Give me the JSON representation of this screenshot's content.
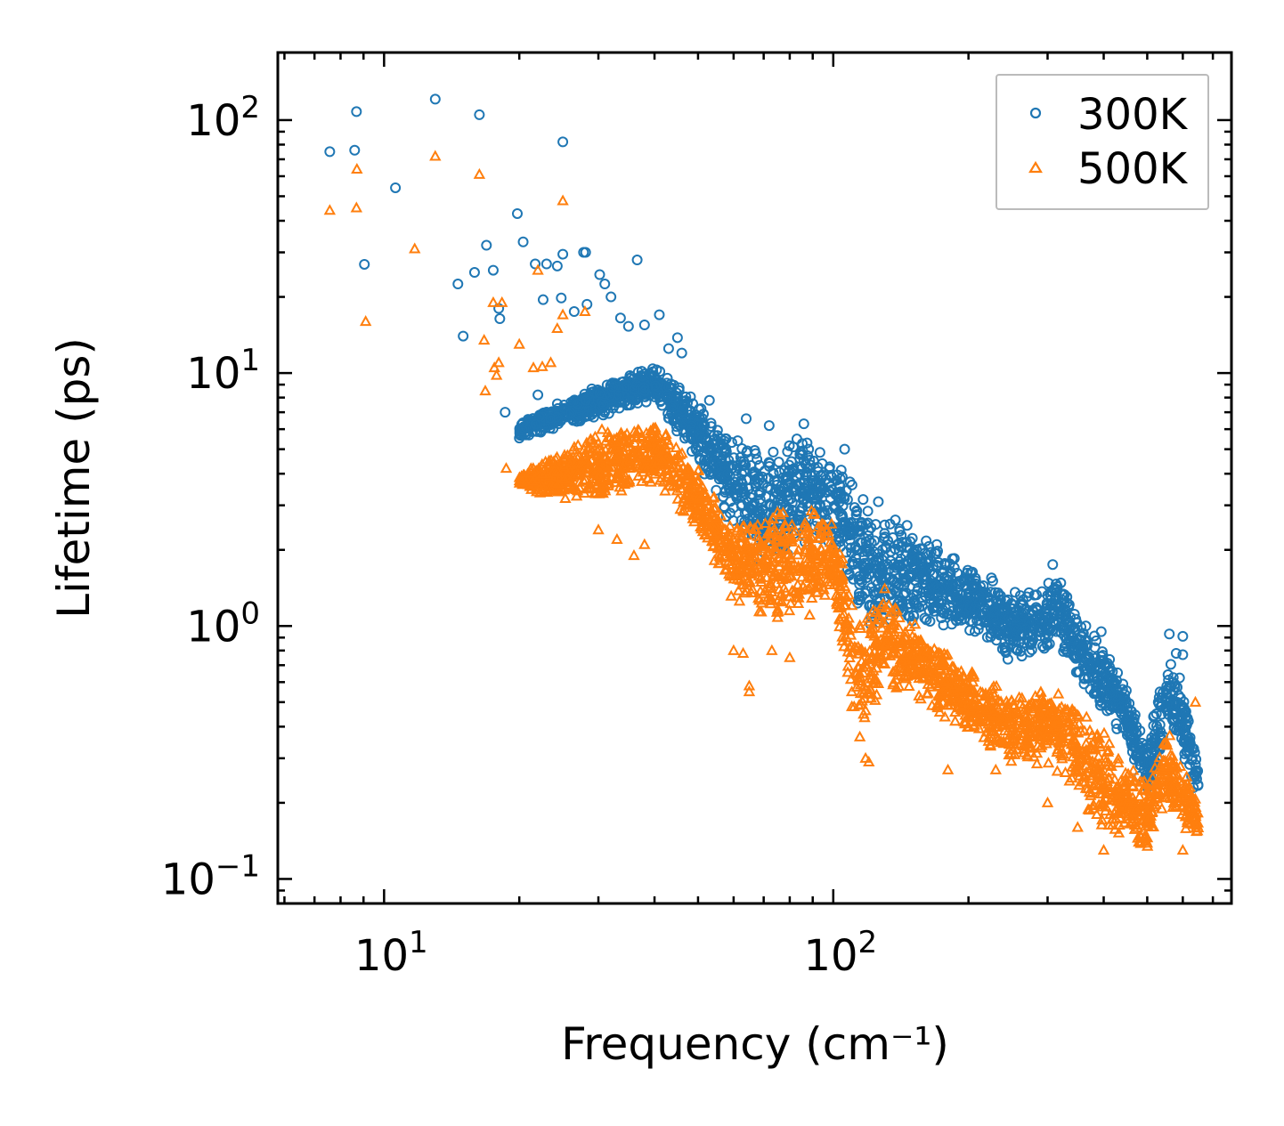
{
  "chart_data": {
    "type": "scatter",
    "title": "",
    "xlabel": "Frequency (cm⁻¹)",
    "ylabel": "Lifetime (ps)",
    "xscale": "log",
    "yscale": "log",
    "xlim": [
      5.8,
      770
    ],
    "ylim": [
      0.08,
      185
    ],
    "grid": false,
    "legend_position": "top-right",
    "xticks": [
      {
        "value": 10,
        "base": "10",
        "exp": "1"
      },
      {
        "value": 100,
        "base": "10",
        "exp": "2"
      }
    ],
    "yticks": [
      {
        "value": 0.1,
        "base": "10",
        "exp": "−1"
      },
      {
        "value": 1,
        "base": "10",
        "exp": "0"
      },
      {
        "value": 10,
        "base": "10",
        "exp": "1"
      },
      {
        "value": 100,
        "base": "10",
        "exp": "2"
      }
    ],
    "series": [
      {
        "name": "300K",
        "marker": "circle",
        "color": "#1f77b4",
        "points": [
          [
            7.57,
            75
          ],
          [
            8.68,
            108
          ],
          [
            8.6,
            76
          ],
          [
            9.04,
            26.9
          ],
          [
            10.6,
            54
          ],
          [
            13.0,
            121
          ],
          [
            16.3,
            105
          ],
          [
            25.0,
            82
          ],
          [
            19.8,
            42.7
          ],
          [
            20.4,
            33
          ],
          [
            16.9,
            32
          ],
          [
            14.6,
            22.5
          ],
          [
            15.9,
            25
          ],
          [
            28.1,
            30
          ],
          [
            36.6,
            28
          ],
          [
            21.7,
            27
          ],
          [
            23,
            27
          ],
          [
            24.3,
            26.5
          ],
          [
            25,
            29.5
          ],
          [
            27.8,
            30
          ],
          [
            17.5,
            25.5
          ],
          [
            18,
            18
          ],
          [
            18.1,
            16.4
          ],
          [
            22.6,
            19.5
          ],
          [
            24.8,
            19.8
          ],
          [
            26.5,
            17.5
          ],
          [
            28.3,
            18.7
          ],
          [
            30.2,
            24.5
          ],
          [
            31,
            22.5
          ],
          [
            32,
            20
          ],
          [
            33.6,
            16.5
          ],
          [
            35,
            15.3
          ],
          [
            38,
            15.5
          ],
          [
            41,
            17
          ],
          [
            15,
            14
          ],
          [
            18.6,
            7
          ],
          [
            22,
            8.2
          ],
          [
            45,
            13.8
          ],
          [
            46,
            12
          ],
          [
            43,
            12.5
          ],
          [
            53,
            7.8
          ],
          [
            64,
            6.6
          ],
          [
            72,
            6.2
          ],
          [
            86,
            6.3
          ],
          [
            106,
            5
          ],
          [
            126,
            3.1
          ],
          [
            146,
            2.5
          ],
          [
            170,
            2.1
          ],
          [
            186,
            1.85
          ],
          [
            225,
            1.55
          ],
          [
            308,
            1.75
          ],
          [
            365,
            1.0
          ],
          [
            395,
            0.95
          ],
          [
            560,
            0.93
          ],
          [
            600,
            0.91
          ],
          [
            580,
            0.78
          ],
          [
            600,
            0.77
          ]
        ],
        "band": [
          [
            20,
            5.5,
            6.5
          ],
          [
            30,
            6.6,
            9
          ],
          [
            40,
            7.8,
            11
          ],
          [
            50,
            4.4,
            7.8
          ],
          [
            60,
            2.3,
            5.6
          ],
          [
            70,
            1.5,
            5
          ],
          [
            85,
            2,
            6
          ],
          [
            100,
            2,
            4.8
          ],
          [
            120,
            0.9,
            3.2
          ],
          [
            150,
            1,
            2.5
          ],
          [
            200,
            0.9,
            1.8
          ],
          [
            250,
            0.7,
            1.4
          ],
          [
            300,
            0.75,
            1.5
          ],
          [
            310,
            0.9,
            1.7
          ],
          [
            350,
            0.6,
            1.1
          ],
          [
            400,
            0.45,
            0.85
          ],
          [
            450,
            0.35,
            0.6
          ],
          [
            500,
            0.2,
            0.35
          ],
          [
            550,
            0.35,
            0.8
          ],
          [
            600,
            0.3,
            0.6
          ],
          [
            650,
            0.2,
            0.3
          ]
        ]
      },
      {
        "name": "500K",
        "marker": "triangle",
        "color": "#ff7f0e",
        "points": [
          [
            7.57,
            44
          ],
          [
            8.68,
            45
          ],
          [
            8.7,
            64
          ],
          [
            9.1,
            16
          ],
          [
            11.7,
            31
          ],
          [
            13.0,
            72
          ],
          [
            16.3,
            61
          ],
          [
            25.0,
            48
          ],
          [
            17.5,
            19
          ],
          [
            18.3,
            19
          ],
          [
            16.7,
            13.5
          ],
          [
            16.8,
            8.5
          ],
          [
            17.6,
            10.5
          ],
          [
            18,
            11
          ],
          [
            17.8,
            9.8
          ],
          [
            20,
            13
          ],
          [
            21.5,
            10.5
          ],
          [
            22.5,
            10.6
          ],
          [
            23.5,
            11
          ],
          [
            24.3,
            15
          ],
          [
            22,
            25.5
          ],
          [
            25,
            17
          ],
          [
            28,
            17.5
          ],
          [
            18.7,
            4.2
          ],
          [
            30,
            2.4
          ],
          [
            33,
            2.2
          ],
          [
            36,
            1.9
          ],
          [
            38,
            2.1
          ],
          [
            60,
            0.8
          ],
          [
            63,
            0.78
          ],
          [
            65,
            0.58
          ],
          [
            65,
            0.55
          ],
          [
            73,
            0.8
          ],
          [
            80,
            0.75
          ],
          [
            110,
            0.48
          ],
          [
            118,
            0.3
          ],
          [
            120,
            0.29
          ],
          [
            180,
            0.27
          ],
          [
            230,
            0.27
          ],
          [
            300,
            0.2
          ],
          [
            350,
            0.16
          ],
          [
            400,
            0.13
          ],
          [
            600,
            0.13
          ],
          [
            640,
            0.5
          ]
        ],
        "band": [
          [
            20,
            3.4,
            4
          ],
          [
            30,
            3,
            6
          ],
          [
            40,
            3.7,
            6.5
          ],
          [
            50,
            2.3,
            4.4
          ],
          [
            60,
            1.2,
            2.5
          ],
          [
            70,
            1,
            3.2
          ],
          [
            85,
            1,
            3.2
          ],
          [
            100,
            1.2,
            2.7
          ],
          [
            115,
            0.3,
            1.1
          ],
          [
            130,
            0.6,
            1.5
          ],
          [
            150,
            0.5,
            1.1
          ],
          [
            200,
            0.38,
            0.7
          ],
          [
            250,
            0.28,
            0.53
          ],
          [
            300,
            0.28,
            0.6
          ],
          [
            350,
            0.22,
            0.5
          ],
          [
            400,
            0.14,
            0.4
          ],
          [
            450,
            0.15,
            0.3
          ],
          [
            500,
            0.12,
            0.24
          ],
          [
            550,
            0.2,
            0.4
          ],
          [
            600,
            0.15,
            0.3
          ],
          [
            650,
            0.14,
            0.2
          ]
        ]
      }
    ]
  }
}
